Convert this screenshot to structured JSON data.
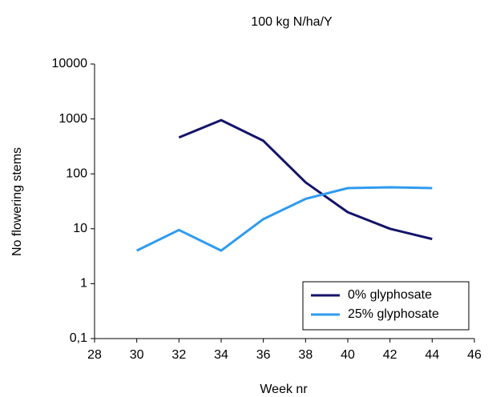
{
  "chart_data": {
    "type": "line",
    "title": "100 kg N/ha/Y",
    "xlabel": "Week nr",
    "ylabel": "No flowering stems",
    "x": [
      30,
      32,
      34,
      36,
      38,
      40,
      42,
      44
    ],
    "series": [
      {
        "name": "0% glyphosate",
        "color": "#14146b",
        "values": [
          null,
          460,
          950,
          400,
          70,
          20,
          10,
          6.5
        ]
      },
      {
        "name": "25% glyphosate",
        "color": "#2f9bef",
        "values": [
          4,
          9.5,
          4,
          15,
          35,
          55,
          57,
          55
        ]
      }
    ],
    "xlim": [
      28,
      46
    ],
    "xticks": [
      28,
      30,
      32,
      34,
      36,
      38,
      40,
      42,
      44,
      46
    ],
    "ylim": [
      0.1,
      10000
    ],
    "log_y": true,
    "yticks": [
      {
        "value": 0.1,
        "label": "0,1"
      },
      1,
      10,
      100,
      1000,
      10000
    ],
    "legend": "lower right"
  }
}
